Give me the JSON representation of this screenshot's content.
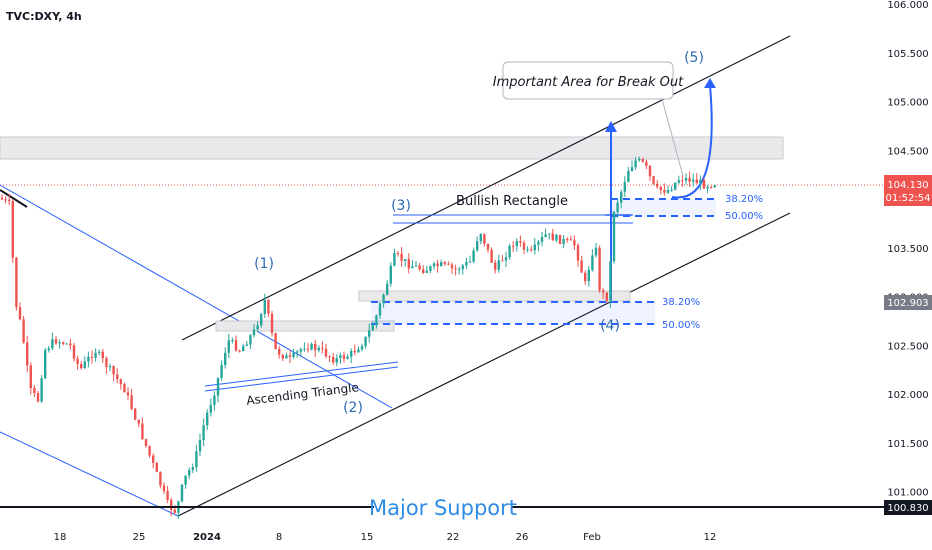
{
  "symbol": "TVC:DXY, 4h",
  "colors": {
    "up": "#26a69a",
    "down": "#ef5350",
    "blue": "#2962ff",
    "annotation_blue": "#2e6ab4",
    "black": "#131722",
    "zone": "#d1d4dc"
  },
  "chart_data": {
    "type": "candlestick",
    "ylim": [
      100.75,
      106.0
    ],
    "price_ticks": [
      "106.000",
      "105.500",
      "105.000",
      "104.500",
      "104.000",
      "103.500",
      "103.000",
      "102.500",
      "102.000",
      "101.500",
      "101.000"
    ],
    "time_ticks": [
      "18",
      "25",
      "2024",
      "8",
      "15",
      "22",
      "26",
      "Feb",
      "12"
    ],
    "last_price_label": {
      "price": "104.130",
      "countdown": "01:52:54"
    },
    "secondary_price_label": "102.903",
    "support_price_label": "100.830",
    "major_support_price": 100.83,
    "resistance_zone": [
      104.38,
      104.62
    ],
    "waves": [
      "(1)",
      "(2)",
      "(3)",
      "(4)",
      "(5)"
    ],
    "fib_levels_left": [
      "38.20%",
      "50.00%"
    ],
    "fib_levels_right": [
      "38.20%",
      "50.00%"
    ],
    "annotations": {
      "breakout_callout": "Important Area for Break Out",
      "bullish_rectangle": "Bullish Rectangle",
      "ascending_triangle": "Ascending Triangle",
      "major_support": "Major Support"
    }
  }
}
